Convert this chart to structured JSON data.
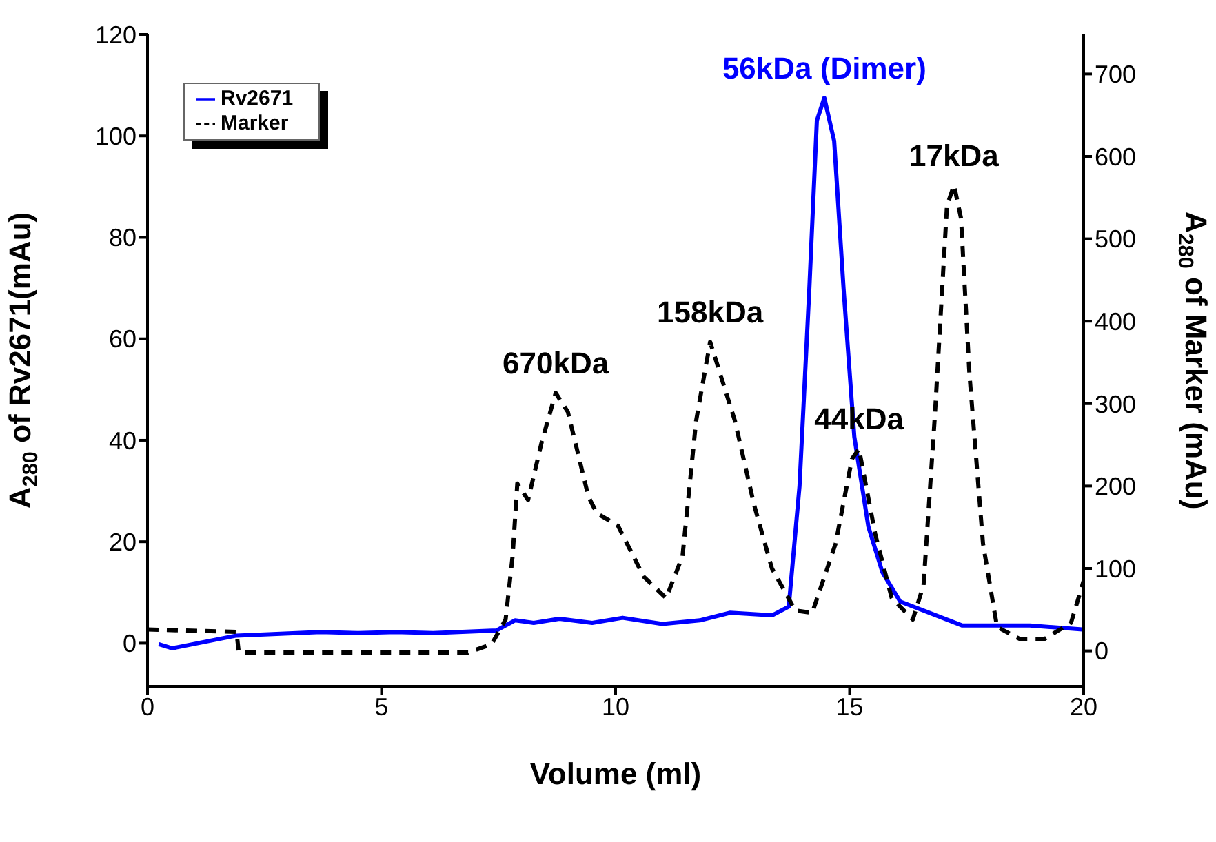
{
  "chart_data": {
    "type": "line",
    "xlabel": "Volume (ml)",
    "ylabel": "A$_{280}$ of Rv2671(mAu)",
    "y2label": "A$_{280}$ of Marker (mAu)",
    "xlim": [
      0,
      20
    ],
    "xticks": [
      0,
      5,
      10,
      15,
      20
    ],
    "ylim": [
      -8.5,
      120
    ],
    "yticks": [
      0,
      20,
      40,
      60,
      80,
      100,
      120
    ],
    "y2lim": [
      -43,
      748
    ],
    "y2ticks": [
      0,
      100,
      200,
      300,
      400,
      500,
      600,
      700
    ],
    "grid": false,
    "legend": "top left",
    "annotations": [
      {
        "text": "56kDa (Dimer)",
        "x": 14.46,
        "y": 107.5
      },
      {
        "text": "670kDa",
        "x": 8.72,
        "y": 49.3
      },
      {
        "text": "158kDa",
        "x": 12.02,
        "y": 59.4
      },
      {
        "text": "44kDa",
        "x": 15.2,
        "y": 38.3
      },
      {
        "text": "17kDa",
        "x": 17.23,
        "y": 90.3
      }
    ],
    "series": [
      {
        "name": "Rv2671",
        "color": "#0000ff",
        "line_style": "solid",
        "x": [
          0.24,
          0.53,
          1.9,
          3.7,
          4.5,
          5.3,
          6.1,
          7.45,
          7.85,
          8.25,
          8.8,
          9.5,
          10.15,
          11,
          11.8,
          12.45,
          13.35,
          13.7,
          13.93,
          14.14,
          14.3,
          14.46,
          14.67,
          14.87,
          15.1,
          15.4,
          15.7,
          16.08,
          17.4,
          18.85,
          19.97
        ],
        "values": [
          -0.2,
          -1,
          1.5,
          2.2,
          2,
          2.2,
          2,
          2.5,
          4.5,
          4,
          4.8,
          4,
          5,
          3.8,
          4.5,
          6,
          5.5,
          7.2,
          31,
          70,
          103,
          107.5,
          99,
          70,
          40.7,
          23,
          14,
          8.2,
          3.5,
          3.5,
          2.7
        ]
      },
      {
        "name": "Marker",
        "color": "#000000",
        "line_style": "dashed",
        "axis": "y2",
        "x": [
          0,
          1.9,
          1.95,
          6.85,
          7.35,
          7.65,
          7.8,
          7.9,
          8.13,
          8.42,
          8.72,
          8.98,
          9.42,
          9.6,
          10.05,
          10.6,
          11.08,
          11.43,
          11.72,
          12.02,
          12.55,
          12.96,
          13.34,
          13.84,
          14.2,
          14.7,
          15.05,
          15.2,
          15.55,
          15.9,
          16.35,
          16.58,
          16.82,
          17.08,
          17.23,
          17.38,
          17.56,
          17.85,
          18.15,
          18.65,
          19.15,
          19.73,
          20
        ],
        "values": [
          26,
          23,
          -2,
          -2,
          8,
          38,
          115,
          203,
          183,
          253,
          313,
          290,
          187,
          167,
          152,
          90,
          64,
          115,
          279,
          375,
          279,
          177,
          100,
          49,
          46,
          130,
          233,
          245,
          141,
          64,
          38,
          80,
          284,
          540,
          565,
          525,
          336,
          130,
          29,
          14,
          14,
          34,
          85
        ]
      }
    ]
  }
}
